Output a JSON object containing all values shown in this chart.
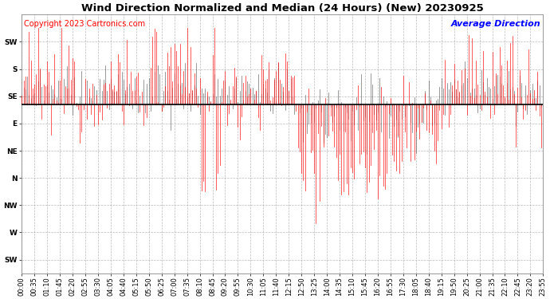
{
  "title": "Wind Direction Normalized and Median (24 Hours) (New) 20230925",
  "copyright": "Copyright 2023 Cartronics.com",
  "legend_label": "Average Direction",
  "legend_color": "blue",
  "background_color": "#ffffff",
  "plot_bg_color": "#ffffff",
  "grid_color": "#aaaaaa",
  "line_color_main": "red",
  "line_color_median": "#333333",
  "avg_line_color": "black",
  "ytick_labels": [
    "SW",
    "S",
    "SE",
    "E",
    "NE",
    "N",
    "NW",
    "W",
    "SW"
  ],
  "ytick_values": [
    8,
    7,
    6,
    5,
    4,
    3,
    2,
    1,
    0
  ],
  "ylim": [
    -0.5,
    9.0
  ],
  "avg_line_value": 5.7,
  "title_fontsize": 9.5,
  "tick_fontsize": 6.5,
  "copyright_fontsize": 7,
  "legend_fontsize": 8,
  "xtick_step_minutes": 35,
  "n_points": 288
}
